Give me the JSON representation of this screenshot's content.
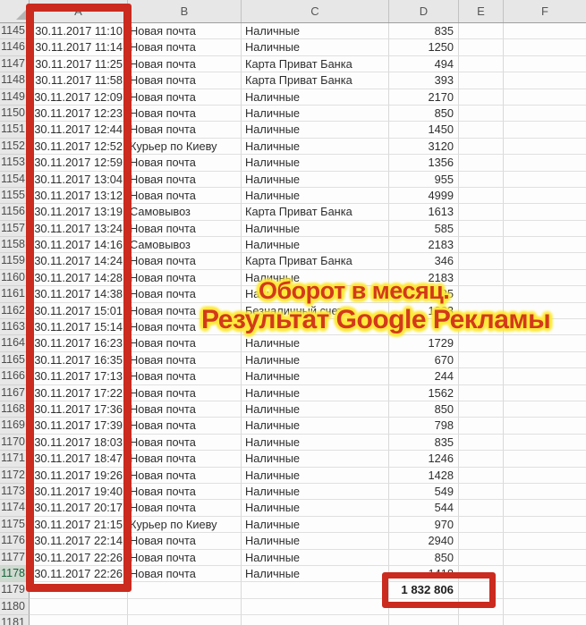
{
  "colors": {
    "red_box": "#cb2a1e",
    "caption_red": "#d23a1b",
    "caption_yellow": "#ffe93c"
  },
  "sheet": {
    "columns": [
      "A",
      "B",
      "C",
      "D",
      "E",
      "F"
    ],
    "rows": [
      {
        "n": "1145",
        "a": "30.11.2017 11:10",
        "b": "Новая почта",
        "c": "Наличные",
        "d": "835"
      },
      {
        "n": "1146",
        "a": "30.11.2017 11:14",
        "b": "Новая почта",
        "c": "Наличные",
        "d": "1250"
      },
      {
        "n": "1147",
        "a": "30.11.2017 11:25",
        "b": "Новая почта",
        "c": "Карта Приват Банка",
        "d": "494"
      },
      {
        "n": "1148",
        "a": "30.11.2017 11:58",
        "b": "Новая почта",
        "c": "Карта Приват Банка",
        "d": "393"
      },
      {
        "n": "1149",
        "a": "30.11.2017 12:09",
        "b": "Новая почта",
        "c": "Наличные",
        "d": "2170"
      },
      {
        "n": "1150",
        "a": "30.11.2017 12:23",
        "b": "Новая почта",
        "c": "Наличные",
        "d": "850"
      },
      {
        "n": "1151",
        "a": "30.11.2017 12:44",
        "b": "Новая почта",
        "c": "Наличные",
        "d": "1450"
      },
      {
        "n": "1152",
        "a": "30.11.2017 12:52",
        "b": "Курьер по Киеву",
        "c": "Наличные",
        "d": "3120"
      },
      {
        "n": "1153",
        "a": "30.11.2017 12:59",
        "b": "Новая почта",
        "c": "Наличные",
        "d": "1356"
      },
      {
        "n": "1154",
        "a": "30.11.2017 13:04",
        "b": "Новая почта",
        "c": "Наличные",
        "d": "955"
      },
      {
        "n": "1155",
        "a": "30.11.2017 13:12",
        "b": "Новая почта",
        "c": "Наличные",
        "d": "4999"
      },
      {
        "n": "1156",
        "a": "30.11.2017 13:19",
        "b": "Самовывоз",
        "c": "Карта Приват Банка",
        "d": "1613"
      },
      {
        "n": "1157",
        "a": "30.11.2017 13:24",
        "b": "Новая почта",
        "c": "Наличные",
        "d": "585"
      },
      {
        "n": "1158",
        "a": "30.11.2017 14:16",
        "b": "Самовывоз",
        "c": "Наличные",
        "d": "2183"
      },
      {
        "n": "1159",
        "a": "30.11.2017 14:24",
        "b": "Новая почта",
        "c": "Карта Приват Банка",
        "d": "346"
      },
      {
        "n": "1160",
        "a": "30.11.2017 14:28",
        "b": "Новая почта",
        "c": "Наличные",
        "d": "2183"
      },
      {
        "n": "1161",
        "a": "30.11.2017 14:38",
        "b": "Новая почта",
        "c": "Наличные",
        "d": "1025"
      },
      {
        "n": "1162",
        "a": "30.11.2017 15:01",
        "b": "Новая почта",
        "c": "Безналичный счет",
        "d": "1223"
      },
      {
        "n": "1163",
        "a": "30.11.2017 15:14",
        "b": "Новая почта",
        "c": "",
        "d": ""
      },
      {
        "n": "1164",
        "a": "30.11.2017 16:23",
        "b": "Новая почта",
        "c": "Наличные",
        "d": "1729"
      },
      {
        "n": "1165",
        "a": "30.11.2017 16:35",
        "b": "Новая почта",
        "c": "Наличные",
        "d": "670"
      },
      {
        "n": "1166",
        "a": "30.11.2017 17:13",
        "b": "Новая почта",
        "c": "Наличные",
        "d": "244"
      },
      {
        "n": "1167",
        "a": "30.11.2017 17:22",
        "b": "Новая почта",
        "c": "Наличные",
        "d": "1562"
      },
      {
        "n": "1168",
        "a": "30.11.2017 17:36",
        "b": "Новая почта",
        "c": "Наличные",
        "d": "850"
      },
      {
        "n": "1169",
        "a": "30.11.2017 17:39",
        "b": "Новая почта",
        "c": "Наличные",
        "d": "798"
      },
      {
        "n": "1170",
        "a": "30.11.2017 18:03",
        "b": "Новая почта",
        "c": "Наличные",
        "d": "835"
      },
      {
        "n": "1171",
        "a": "30.11.2017 18:47",
        "b": "Новая почта",
        "c": "Наличные",
        "d": "1246"
      },
      {
        "n": "1172",
        "a": "30.11.2017 19:26",
        "b": "Новая почта",
        "c": "Наличные",
        "d": "1428"
      },
      {
        "n": "1173",
        "a": "30.11.2017 19:40",
        "b": "Новая почта",
        "c": "Наличные",
        "d": "549"
      },
      {
        "n": "1174",
        "a": "30.11.2017 20:17",
        "b": "Новая почта",
        "c": "Наличные",
        "d": "544"
      },
      {
        "n": "1175",
        "a": "30.11.2017 21:15",
        "b": "Курьер по Киеву",
        "c": "Наличные",
        "d": "970"
      },
      {
        "n": "1176",
        "a": "30.11.2017 22:14",
        "b": "Новая почта",
        "c": "Наличные",
        "d": "2940"
      },
      {
        "n": "1177",
        "a": "30.11.2017 22:26",
        "b": "Новая почта",
        "c": "Наличные",
        "d": "850"
      },
      {
        "n": "1178",
        "a": "30.11.2017 22:26",
        "b": "Новая почта",
        "c": "Наличные",
        "d": "1418",
        "hl": true
      },
      {
        "n": "1179",
        "a": "",
        "b": "",
        "c": "",
        "d": "1 832 806",
        "bold": true
      },
      {
        "n": "1180",
        "a": "",
        "b": "",
        "c": "",
        "d": ""
      },
      {
        "n": "1181",
        "a": "",
        "b": "",
        "c": "",
        "d": ""
      }
    ]
  },
  "caption": {
    "line1": "Оборот в месяц.",
    "line2": "Результат Google Рекламы"
  }
}
